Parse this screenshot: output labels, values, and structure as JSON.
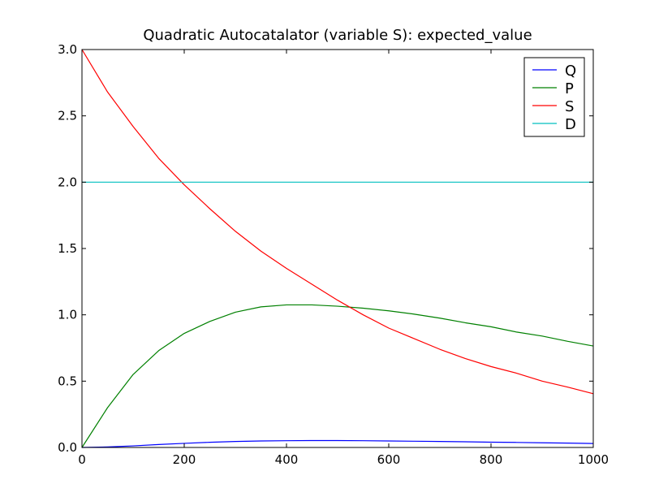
{
  "chart_data": {
    "type": "line",
    "title": "Quadratic Autocatalator (variable S): expected_value",
    "xlabel": "",
    "ylabel": "",
    "xlim": [
      0,
      1000
    ],
    "ylim": [
      0.0,
      3.0
    ],
    "x_ticks": [
      0,
      200,
      400,
      600,
      800,
      1000
    ],
    "x_tick_labels": [
      "0",
      "200",
      "400",
      "600",
      "800",
      "1000"
    ],
    "y_ticks": [
      0.0,
      0.5,
      1.0,
      1.5,
      2.0,
      2.5,
      3.0
    ],
    "y_tick_labels": [
      "0.0",
      "0.5",
      "1.0",
      "1.5",
      "2.0",
      "2.5",
      "3.0"
    ],
    "grid": false,
    "legend_position": "top-right",
    "x": [
      0,
      50,
      100,
      150,
      200,
      250,
      300,
      350,
      400,
      450,
      500,
      550,
      600,
      650,
      700,
      750,
      800,
      850,
      900,
      950,
      1000
    ],
    "series": [
      {
        "name": "Q",
        "color": "#0000ff",
        "values": [
          0.0,
          0.004,
          0.012,
          0.022,
          0.031,
          0.039,
          0.045,
          0.049,
          0.051,
          0.052,
          0.052,
          0.051,
          0.049,
          0.047,
          0.045,
          0.043,
          0.04,
          0.038,
          0.035,
          0.033,
          0.03
        ]
      },
      {
        "name": "P",
        "color": "#008000",
        "values": [
          0.0,
          0.3,
          0.55,
          0.73,
          0.86,
          0.95,
          1.02,
          1.06,
          1.075,
          1.075,
          1.065,
          1.05,
          1.03,
          1.005,
          0.975,
          0.94,
          0.91,
          0.87,
          0.84,
          0.8,
          0.765
        ]
      },
      {
        "name": "S",
        "color": "#ff0000",
        "values": [
          3.0,
          2.68,
          2.42,
          2.18,
          1.98,
          1.8,
          1.63,
          1.48,
          1.35,
          1.23,
          1.11,
          1.0,
          0.9,
          0.82,
          0.74,
          0.67,
          0.61,
          0.56,
          0.5,
          0.455,
          0.405
        ]
      },
      {
        "name": "D",
        "color": "#00bfbf",
        "values": [
          2.0,
          2.0,
          2.0,
          2.0,
          2.0,
          2.0,
          2.0,
          2.0,
          2.0,
          2.0,
          2.0,
          2.0,
          2.0,
          2.0,
          2.0,
          2.0,
          2.0,
          2.0,
          2.0,
          2.0,
          2.0
        ]
      }
    ]
  }
}
